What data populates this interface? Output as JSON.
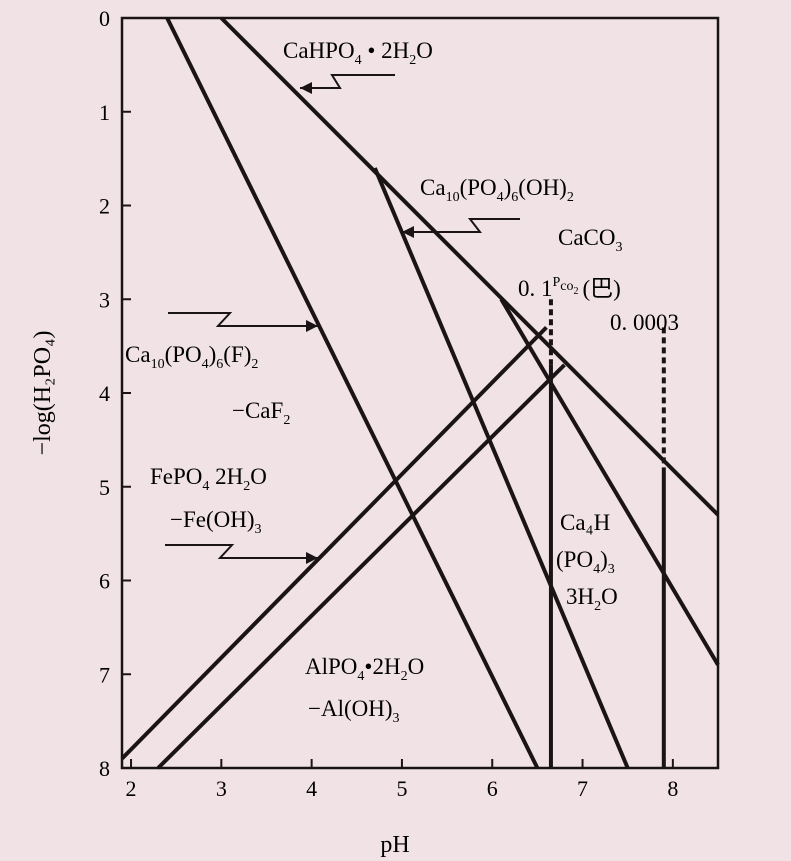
{
  "chart_data": {
    "type": "line",
    "xlabel": "pH",
    "ylabel": "−log(H₂PO₄)",
    "xlim": [
      1.9,
      8.5
    ],
    "ylim": [
      0,
      8
    ],
    "y_inverted": true,
    "xticks": [
      "2",
      "3",
      "4",
      "5",
      "6",
      "7",
      "8"
    ],
    "yticks": [
      "0",
      "1",
      "2",
      "3",
      "4",
      "5",
      "6",
      "7",
      "8"
    ],
    "grid": false,
    "series": [
      {
        "name": "CaHPO₄·2H₂O",
        "x": [
          3.0,
          8.5
        ],
        "y": [
          0,
          5.3
        ]
      },
      {
        "name": "Ca₁₀(PO₄)₆(OH)₂–CaCO₃ (Pₘₒ₂ 0.1)",
        "x": [
          4.7,
          7.5
        ],
        "y": [
          1.6,
          8.0
        ]
      },
      {
        "name": "Ca₁₀(PO₄)₆(OH)₂–CaCO₃ (Pₘₒ₂ 0.0003)",
        "x": [
          6.1,
          8.5
        ],
        "y": [
          3.0,
          6.9
        ]
      },
      {
        "name": "Ca₁₀(PO₄)₆(F)₂–CaF₂",
        "x": [
          2.4,
          6.5
        ],
        "y": [
          0,
          8.0
        ]
      },
      {
        "name": "FePO₄·2H₂O–Fe(OH)₃",
        "x": [
          1.9,
          6.6
        ],
        "y": [
          7.9,
          3.3
        ]
      },
      {
        "name": "AlPO₄·2H₂O–Al(OH)₃",
        "x": [
          2.3,
          6.8
        ],
        "y": [
          8.0,
          3.7
        ]
      },
      {
        "name": "Ca₄H(PO₄)₃·3H₂O (Pₘₒ₂ 0.1)",
        "x": [
          6.65,
          6.65
        ],
        "y": [
          3.0,
          8.0
        ],
        "dashed_to": 3.7
      },
      {
        "name": "Ca₄H(PO₄)₃·3H₂O (Pₘₒ₂ 0.0003)",
        "x": [
          7.9,
          7.9
        ],
        "y": [
          3.3,
          8.0
        ],
        "dashed_to": 4.8
      }
    ],
    "annotations": {
      "cahpo4": {
        "main": "CaHPO",
        "s1": "4",
        "mid": " • 2H",
        "s2": "2",
        "end": "O"
      },
      "hap": {
        "p1": "Ca",
        "s1": "10",
        "p2": "(PO",
        "s2": "4",
        "p3": ")",
        "s3": "6",
        "p4": "(OH)",
        "s4": "2"
      },
      "caco3": {
        "p1": "CaCO",
        "s1": "3"
      },
      "pco2_01": {
        "p1": "0. 1",
        "sup": "P",
        "sub": "co",
        "subsub": "2",
        "p2": "(巴)"
      },
      "pco2_0003": "0. 0003",
      "fap": {
        "p1": "Ca",
        "s1": "10",
        "p2": "(PO",
        "s2": "4",
        "p3": ")",
        "s3": "6",
        "p4": "(F)",
        "s4": "2"
      },
      "caf2": {
        "p1": "−CaF",
        "s1": "2"
      },
      "fepo4": {
        "p1": "FePO",
        "s1": "4",
        "p2": "   2H",
        "s2": "2",
        "p3": "O"
      },
      "feoh3": {
        "p1": "−Fe(OH)",
        "s1": "3"
      },
      "ca4h_1": "Ca₄H",
      "ca4h_2": {
        "p1": "(PO",
        "s1": "4",
        "p2": ")",
        "s2": "3"
      },
      "ca4h_3": {
        "p1": "3H",
        "s1": "2",
        "p2": "O"
      },
      "alpo4": {
        "p1": "AlPO",
        "s1": "4",
        "p2": "•2H",
        "s2": "2",
        "p3": "O"
      },
      "aloh3": {
        "p1": "−Al(OH)",
        "s1": "3"
      }
    },
    "colors": {
      "line": "#1b1416",
      "background": "#f1e3e5"
    }
  }
}
